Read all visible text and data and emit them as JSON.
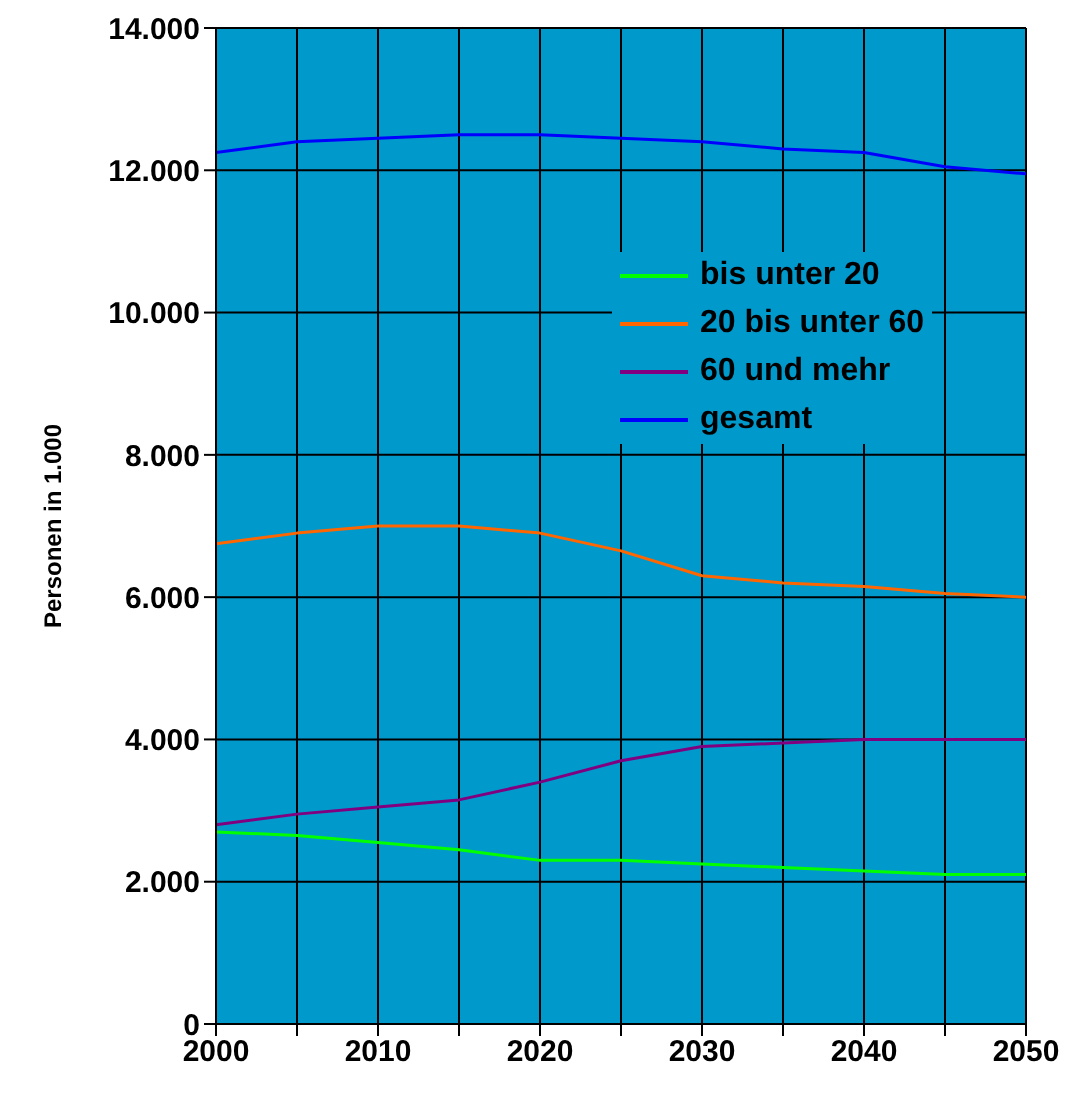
{
  "chart_data": {
    "type": "line",
    "ylabel": "Personen in 1.000",
    "x": [
      2000,
      2005,
      2010,
      2015,
      2020,
      2025,
      2030,
      2035,
      2040,
      2045,
      2050
    ],
    "series": [
      {
        "name": "bis unter 20",
        "color": "#00ff00",
        "values": [
          2700,
          2650,
          2550,
          2450,
          2300,
          2300,
          2250,
          2200,
          2150,
          2100,
          2100
        ]
      },
      {
        "name": "20 bis unter 60",
        "color": "#ff6600",
        "values": [
          6750,
          6900,
          7000,
          7000,
          6900,
          6650,
          6300,
          6200,
          6150,
          6050,
          6000
        ]
      },
      {
        "name": "60 und mehr",
        "color": "#800080",
        "values": [
          2800,
          2950,
          3050,
          3150,
          3400,
          3700,
          3900,
          3950,
          4000,
          4000,
          4000
        ]
      },
      {
        "name": "gesamt",
        "color": "#0000ff",
        "values": [
          12250,
          12400,
          12450,
          12500,
          12500,
          12450,
          12400,
          12300,
          12250,
          12050,
          11950
        ]
      }
    ],
    "xlim": [
      2000,
      2050
    ],
    "xticks": [
      2000,
      2010,
      2020,
      2030,
      2040,
      2050
    ],
    "ylim": [
      0,
      14000
    ],
    "yticks": [
      {
        "value": 0,
        "label": "0"
      },
      {
        "value": 2000,
        "label": "2.000"
      },
      {
        "value": 4000,
        "label": "4.000"
      },
      {
        "value": 6000,
        "label": "6.000"
      },
      {
        "value": 8000,
        "label": "8.000"
      },
      {
        "value": 10000,
        "label": "10.000"
      },
      {
        "value": 12000,
        "label": "12.000"
      },
      {
        "value": 14000,
        "label": "14.000"
      }
    ],
    "grid": true,
    "legend": "top right",
    "marker": "none",
    "line_style": "solid"
  }
}
